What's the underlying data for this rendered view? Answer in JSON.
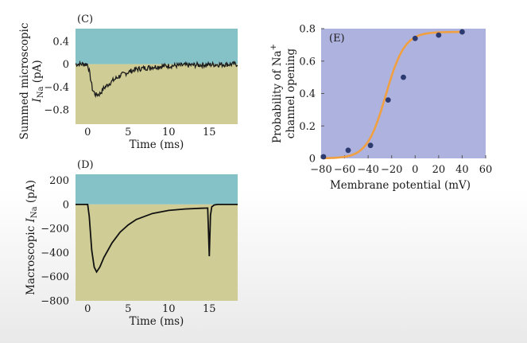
{
  "chart_data": [
    {
      "panel": "(C)",
      "type": "line",
      "xlabel": "Time (ms)",
      "ylabel_main": "Summed microscopic",
      "ylabel_sym": "I",
      "ylabel_sub": "Na",
      "ylabel_unit": " (pA)",
      "xlim": [
        -1.5,
        18.5
      ],
      "ylim": [
        -1.05,
        0.62
      ],
      "xticks": [
        0,
        5,
        10,
        15
      ],
      "xtick_labels": [
        "0",
        "5",
        "10",
        "15"
      ],
      "yticks": [
        0.4,
        0,
        -0.4,
        -0.8
      ],
      "ytick_labels": [
        "0.4",
        "0",
        "−0.4",
        "−0.8"
      ],
      "series": [
        {
          "x": [
            -1.5,
            -0.5,
            0,
            0.3,
            0.6,
            1,
            1.5,
            2,
            3,
            4,
            5,
            6,
            8,
            10,
            12,
            15,
            18.5
          ],
          "y": [
            0,
            0,
            0,
            -0.2,
            -0.45,
            -0.54,
            -0.52,
            -0.42,
            -0.3,
            -0.2,
            -0.14,
            -0.09,
            -0.05,
            -0.03,
            -0.02,
            -0.01,
            0
          ]
        }
      ],
      "bands": {
        "positive": "#84c2c8",
        "negative": "#cfcc95"
      }
    },
    {
      "panel": "(D)",
      "type": "line",
      "xlabel": "Time (ms)",
      "ylabel_main": "Macroscopic",
      "ylabel_sym": "I",
      "ylabel_sub": "Na",
      "ylabel_unit": " (pA)",
      "xlim": [
        -1.5,
        18.5
      ],
      "ylim": [
        -800,
        250
      ],
      "xticks": [
        0,
        5,
        10,
        15
      ],
      "xtick_labels": [
        "0",
        "5",
        "10",
        "15"
      ],
      "yticks": [
        200,
        0,
        -200,
        -400,
        -600,
        -800
      ],
      "ytick_labels": [
        "200",
        "0",
        "−200",
        "−400",
        "−600",
        "−800"
      ],
      "series": [
        {
          "x": [
            -1.5,
            0,
            0.2,
            0.5,
            0.8,
            1.1,
            1.5,
            2,
            3,
            4,
            5,
            6,
            8,
            10,
            12,
            14,
            14.8,
            15,
            15.15,
            15.3,
            15.6,
            16,
            18.5
          ],
          "y": [
            0,
            0,
            -100,
            -380,
            -520,
            -560,
            -520,
            -440,
            -320,
            -230,
            -170,
            -125,
            -75,
            -50,
            -38,
            -32,
            -30,
            -430,
            -90,
            -20,
            -5,
            0,
            0
          ]
        }
      ],
      "bands": {
        "positive": "#84c2c8",
        "negative": "#cfcc95"
      }
    },
    {
      "panel": "(E)",
      "type": "scatter",
      "xlabel": "Membrane potential (mV)",
      "ylabel_line1": "Probability of Na",
      "ylabel_sup": "+",
      "ylabel_line2": "channel opening",
      "xlim": [
        -80,
        60
      ],
      "ylim": [
        0,
        0.8
      ],
      "xticks": [
        -80,
        -60,
        -40,
        -20,
        0,
        20,
        40,
        60
      ],
      "xtick_labels": [
        "−80",
        "−60",
        "−40",
        "−20",
        "0",
        "20",
        "40",
        "60"
      ],
      "yticks": [
        0,
        0.2,
        0.4,
        0.6,
        0.8
      ],
      "ytick_labels": [
        "0",
        "0.2",
        "0.4",
        "0.6",
        "0.8"
      ],
      "points": [
        {
          "x": -78,
          "y": 0.01
        },
        {
          "x": -57,
          "y": 0.05
        },
        {
          "x": -38,
          "y": 0.08
        },
        {
          "x": -23,
          "y": 0.36
        },
        {
          "x": -10,
          "y": 0.5
        },
        {
          "x": 0,
          "y": 0.74
        },
        {
          "x": 20,
          "y": 0.76
        },
        {
          "x": 40,
          "y": 0.78
        }
      ],
      "fit": {
        "type": "boltzmann",
        "max": 0.78,
        "v_half": -25,
        "slope": 8
      },
      "colors": {
        "background": "#aeb2df",
        "points": "#2c3a70",
        "fit": "#f0a040"
      }
    }
  ]
}
